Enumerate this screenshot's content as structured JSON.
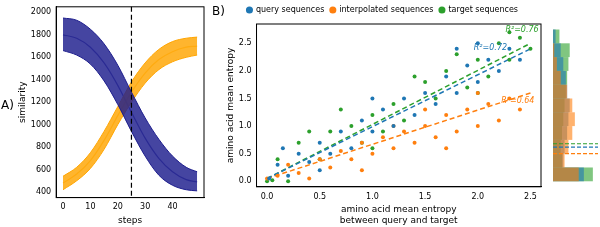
{
  "chart_data": [
    {
      "type": "line",
      "title": "A)",
      "x_label": "steps",
      "y_label": "similarity",
      "x": [
        0,
        5,
        10,
        15,
        20,
        25,
        30,
        35,
        40,
        45,
        49
      ],
      "series": [
        {
          "color": "#1c1c8c",
          "values": [
            1800,
            1770,
            1690,
            1550,
            1350,
            1110,
            880,
            700,
            580,
            510,
            490
          ],
          "upper": [
            1950,
            1930,
            1850,
            1720,
            1530,
            1290,
            1060,
            870,
            720,
            620,
            580
          ],
          "lower": [
            1660,
            1620,
            1540,
            1390,
            1180,
            940,
            720,
            550,
            460,
            420,
            410
          ]
        },
        {
          "color": "#ffa500",
          "values": [
            480,
            560,
            680,
            860,
            1080,
            1290,
            1460,
            1580,
            1650,
            1690,
            1700
          ],
          "upper": [
            540,
            620,
            750,
            940,
            1160,
            1380,
            1550,
            1670,
            1740,
            1770,
            1780
          ],
          "lower": [
            420,
            500,
            610,
            780,
            1000,
            1200,
            1370,
            1490,
            1560,
            1600,
            1620
          ]
        }
      ],
      "annotations": [
        {
          "type": "vline",
          "x": 25,
          "line_style": "dashed"
        }
      ],
      "xlim": [
        -2.5,
        51.5
      ],
      "xticks": [
        0,
        10,
        20,
        30,
        40
      ],
      "ylim": [
        350,
        2050
      ],
      "yticks": [
        400,
        600,
        800,
        1000,
        1200,
        1400,
        1600,
        1800,
        2000
      ],
      "grid": false
    },
    {
      "type": "scatter",
      "title": "B)",
      "x_label": "amino acid mean entropy\nbetween query and target",
      "y_label": "amino acid mean entropy",
      "legend": "top",
      "series": [
        {
          "name": "query sequences",
          "color": "#1f77b4",
          "marker": "circle",
          "x": [
            0.02,
            0.1,
            0.2,
            0.3,
            0.4,
            0.5,
            0.6,
            0.7,
            0.8,
            0.9,
            1.0,
            1.1,
            1.2,
            1.3,
            1.4,
            1.5,
            1.6,
            1.7,
            1.8,
            1.9,
            2.0,
            2.1,
            2.2,
            2.3,
            2.4,
            0.15,
            1.0,
            1.8,
            2.0,
            0.5
          ],
          "values": [
            0.05,
            0.3,
            0.1,
            0.5,
            0.35,
            0.7,
            0.5,
            0.9,
            0.6,
            1.1,
            0.9,
            1.3,
            1.0,
            1.5,
            1.2,
            1.6,
            1.4,
            1.9,
            1.6,
            2.1,
            1.8,
            2.2,
            2.0,
            2.4,
            2.2,
            0.6,
            1.5,
            2.4,
            2.5,
            0.2
          ],
          "fit": {
            "x": [
              0,
              2.5
            ],
            "values": [
              0.05,
              2.4
            ]
          }
        },
        {
          "name": "interpolated sequences",
          "color": "#ff7f0e",
          "marker": "circle",
          "x": [
            0.0,
            0.1,
            0.2,
            0.3,
            0.5,
            0.6,
            0.7,
            0.8,
            0.9,
            1.0,
            1.1,
            1.2,
            1.3,
            1.4,
            1.5,
            1.6,
            1.7,
            1.8,
            1.9,
            2.0,
            2.1,
            2.2,
            2.3,
            2.4,
            1.5,
            0.9,
            1.2,
            2.0,
            0.4,
            1.7
          ],
          "values": [
            0.05,
            0.1,
            0.3,
            0.15,
            0.4,
            0.25,
            0.55,
            0.4,
            0.7,
            0.5,
            0.8,
            0.6,
            0.9,
            0.7,
            1.0,
            0.8,
            1.2,
            0.9,
            1.3,
            1.0,
            1.4,
            1.1,
            1.5,
            1.3,
            1.3,
            0.2,
            1.0,
            1.6,
            0.05,
            0.6
          ],
          "fit": {
            "x": [
              0,
              2.5
            ],
            "values": [
              0.05,
              1.6
            ]
          }
        },
        {
          "name": "target sequences",
          "color": "#2ca02c",
          "marker": "circle",
          "x": [
            0.0,
            0.05,
            0.1,
            0.3,
            0.5,
            0.6,
            0.8,
            0.9,
            1.0,
            1.2,
            1.3,
            1.5,
            1.6,
            1.7,
            1.9,
            2.0,
            2.1,
            2.2,
            2.3,
            2.4,
            2.5,
            1.4,
            0.7,
            1.1,
            2.3,
            1.8,
            0.4,
            1.0,
            2.0,
            0.2
          ],
          "values": [
            0.0,
            0.02,
            0.4,
            0.7,
            0.4,
            0.9,
            1.0,
            0.7,
            1.2,
            1.4,
            1.1,
            1.8,
            1.5,
            2.0,
            1.7,
            2.2,
            1.9,
            2.5,
            2.2,
            2.6,
            2.4,
            1.9,
            1.3,
            0.9,
            2.7,
            2.3,
            0.9,
            0.6,
            1.6,
            0.0
          ],
          "fit": {
            "x": [
              0,
              2.5
            ],
            "values": [
              0.05,
              2.5
            ]
          }
        }
      ],
      "annotations": [
        {
          "text": "R²=0.76",
          "x": 2.42,
          "y": 2.75,
          "color": "#2ca02c"
        },
        {
          "text": "R²=0.72",
          "x": 2.12,
          "y": 2.42,
          "color": "#1f77b4"
        },
        {
          "text": "R²=0.64",
          "x": 2.38,
          "y": 1.45,
          "color": "#ff7f0e"
        }
      ],
      "xlim": [
        -0.1,
        2.6
      ],
      "xticks": [
        {
          "value": 0,
          "label": "0.0"
        },
        {
          "value": 0.5,
          "label": "0.5"
        },
        {
          "value": 1,
          "label": "1.0"
        },
        {
          "value": 1.5,
          "label": "1.5"
        },
        {
          "value": 2,
          "label": "2.0"
        },
        {
          "value": 2.5,
          "label": "2.5"
        }
      ],
      "ylim": [
        -0.1,
        2.85
      ],
      "yticks": [
        {
          "value": 0,
          "label": "0.0"
        },
        {
          "value": 0.5,
          "label": "0.5"
        },
        {
          "value": 1,
          "label": "1.0"
        },
        {
          "value": 1.5,
          "label": "1.5"
        },
        {
          "value": 2,
          "label": "2.0"
        },
        {
          "value": 2.5,
          "label": "2.5"
        }
      ],
      "grid": false
    },
    {
      "type": "histogram",
      "orientation": "horizontal",
      "tick_labels": false,
      "bins": [
        0,
        0.25,
        0.5,
        0.75,
        1.0,
        1.25,
        1.5,
        1.75,
        2.0,
        2.25,
        2.5,
        2.75
      ],
      "series": [
        {
          "color": "#2ca02c",
          "values": [
            62,
            14,
            12,
            14,
            16,
            18,
            20,
            22,
            24,
            26,
            10
          ],
          "mean": 0.68
        },
        {
          "color": "#1f77b4",
          "values": [
            48,
            16,
            18,
            22,
            24,
            26,
            22,
            20,
            16,
            12,
            4
          ],
          "mean": 0.62
        },
        {
          "color": "#ff7f0e",
          "values": [
            40,
            18,
            24,
            30,
            34,
            30,
            22,
            12,
            6,
            2,
            0
          ],
          "mean": 0.5
        }
      ],
      "xlim": [
        0,
        70
      ],
      "ylim": [
        -0.1,
        2.85
      ],
      "grid": false
    }
  ]
}
